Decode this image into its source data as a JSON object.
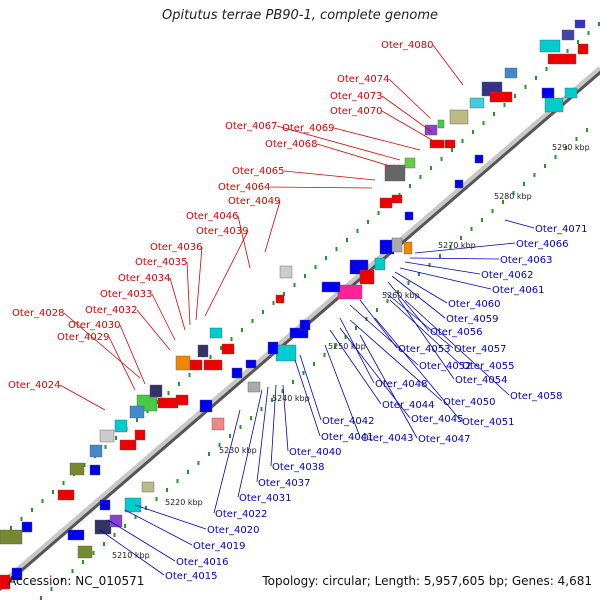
{
  "title": "Opitutus terrae PB90-1, complete genome",
  "footer": {
    "accession": "Accession: NC_010571",
    "summary": "Topology: circular; Length: 5,957,605 bp; Genes: 4,681"
  },
  "colors": {
    "forward_label": "#dd0000",
    "reverse_label": "#0000cc",
    "backbone": "#888888",
    "tick": "#229922",
    "scale_text": "#222222"
  },
  "scale_labels": [
    "5210 kbp",
    "5220 kbp",
    "5230 kbp",
    "5240 kbp",
    "5250 kbp",
    "5260 kbp",
    "5270 kbp",
    "5280 kbp",
    "5290 kbp"
  ],
  "forward_genes": [
    "Oter_4080",
    "Oter_4074",
    "Oter_4073",
    "Oter_4070",
    "Oter_4069",
    "Oter_4067",
    "Oter_4068",
    "Oter_4065",
    "Oter_4064",
    "Oter_4049",
    "Oter_4046",
    "Oter_4039",
    "Oter_4036",
    "Oter_4035",
    "Oter_4034",
    "Oter_4033",
    "Oter_4032",
    "Oter_4028",
    "Oter_4030",
    "Oter_4029",
    "Oter_4024"
  ],
  "reverse_genes": [
    "Oter_4071",
    "Oter_4066",
    "Oter_4063",
    "Oter_4062",
    "Oter_4061",
    "Oter_4060",
    "Oter_4059",
    "Oter_4056",
    "Oter_4053",
    "Oter_4057",
    "Oter_4052",
    "Oter_4055",
    "Oter_4048",
    "Oter_4054",
    "Oter_4058",
    "Oter_4050",
    "Oter_4044",
    "Oter_4045",
    "Oter_4051",
    "Oter_4042",
    "Oter_4041",
    "Oter_4043",
    "Oter_4047",
    "Oter_4040",
    "Oter_4038",
    "Oter_4037",
    "Oter_4031",
    "Oter_4022",
    "Oter_4020",
    "Oter_4019",
    "Oter_4016",
    "Oter_4015"
  ]
}
